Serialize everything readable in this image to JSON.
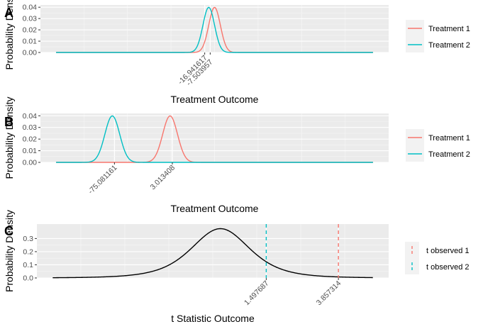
{
  "colors": {
    "treatment1": "#F8766D",
    "treatment2": "#00BFC4",
    "curve": "#000000",
    "panel_bg": "#EBEBEB",
    "grid": "#FFFFFF"
  },
  "chart_data": [
    {
      "type": "line",
      "tag": "A",
      "xlabel": "Treatment Outcome",
      "ylabel": "Probability Density",
      "ylim": [
        0,
        0.042
      ],
      "yticks": [
        "0.00",
        "0.01",
        "0.02",
        "0.03",
        "0.04"
      ],
      "xlim": [
        -300,
        300
      ],
      "marked_x_labels": [
        "-16.941617",
        "-7.503957"
      ],
      "marked_x_values": [
        -16.941617,
        -7.503957
      ],
      "series": [
        {
          "name": "Treatment 1",
          "color": "#F8766D",
          "mean": 0,
          "sd": 10
        },
        {
          "name": "Treatment 2",
          "color": "#00BFC4",
          "mean": -10,
          "sd": 10
        }
      ],
      "legend": [
        "Treatment 1",
        "Treatment 2"
      ],
      "legend_position": "right"
    },
    {
      "type": "line",
      "tag": "B",
      "xlabel": "Treatment Outcome",
      "ylabel": "Probability Density",
      "ylim": [
        0,
        0.042
      ],
      "yticks": [
        "0.00",
        "0.01",
        "0.02",
        "0.03",
        "0.04"
      ],
      "xlim": [
        -175,
        295
      ],
      "marked_x_labels": [
        "-75.081161",
        "3.013408"
      ],
      "marked_x_values": [
        -75.081161,
        3.013408
      ],
      "series": [
        {
          "name": "Treatment 1",
          "color": "#F8766D",
          "mean": 0,
          "sd": 10
        },
        {
          "name": "Treatment 2",
          "color": "#00BFC4",
          "mean": -78,
          "sd": 10
        }
      ],
      "legend": [
        "Treatment 1",
        "Treatment 2"
      ],
      "legend_position": "right"
    },
    {
      "type": "line",
      "tag": "C",
      "xlabel": "t Statistic Outcome",
      "ylabel": "Probability Density",
      "ylim": [
        0,
        0.41
      ],
      "yticks": [
        "0.0",
        "0.1",
        "0.2",
        "0.3"
      ],
      "xlim": [
        -6,
        5.5
      ],
      "marked_x_labels": [
        "1.497687",
        "3.857314"
      ],
      "marked_x_values": [
        1.497687,
        3.857314
      ],
      "curve": {
        "distribution": "t",
        "df": 4
      },
      "vlines": [
        {
          "name": "t observed 1",
          "value": 3.857314,
          "color": "#F8766D"
        },
        {
          "name": "t observed 2",
          "value": 1.497687,
          "color": "#00BFC4"
        }
      ],
      "legend": [
        "t observed 1",
        "t observed 2"
      ],
      "legend_position": "right"
    }
  ]
}
